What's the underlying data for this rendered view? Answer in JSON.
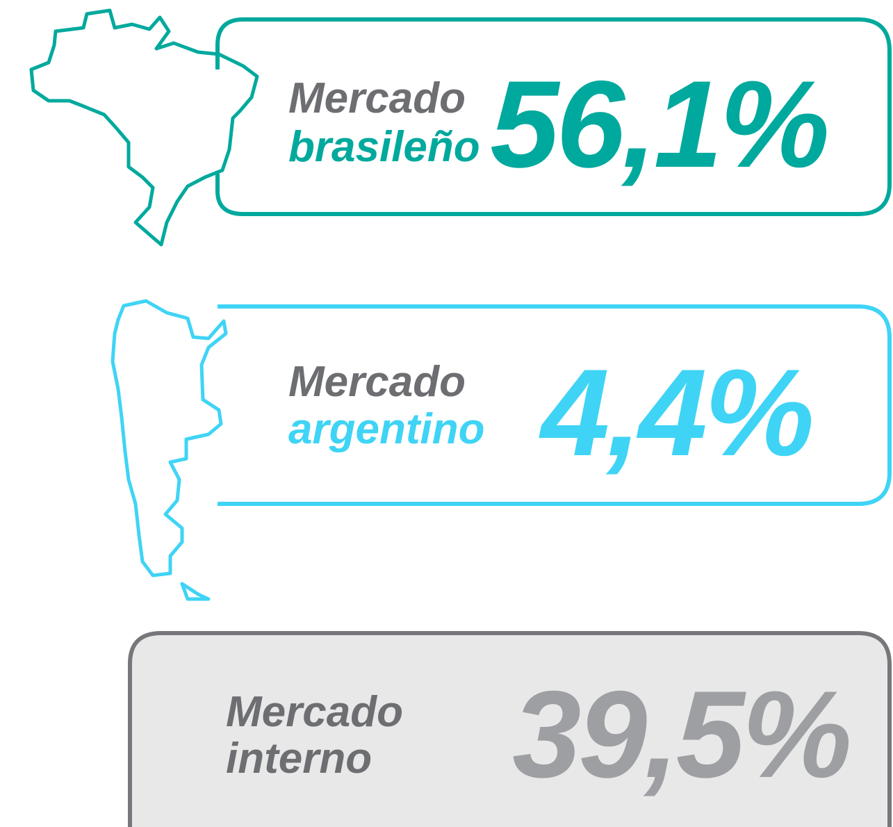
{
  "items": [
    {
      "line1": "Mercado",
      "line2": "brasileño",
      "value": "56,1%"
    },
    {
      "line1": "Mercado",
      "line2": "argentino",
      "value": "4,4%"
    },
    {
      "line1": "Mercado",
      "line2": "interno",
      "value": "39,5%"
    }
  ]
}
